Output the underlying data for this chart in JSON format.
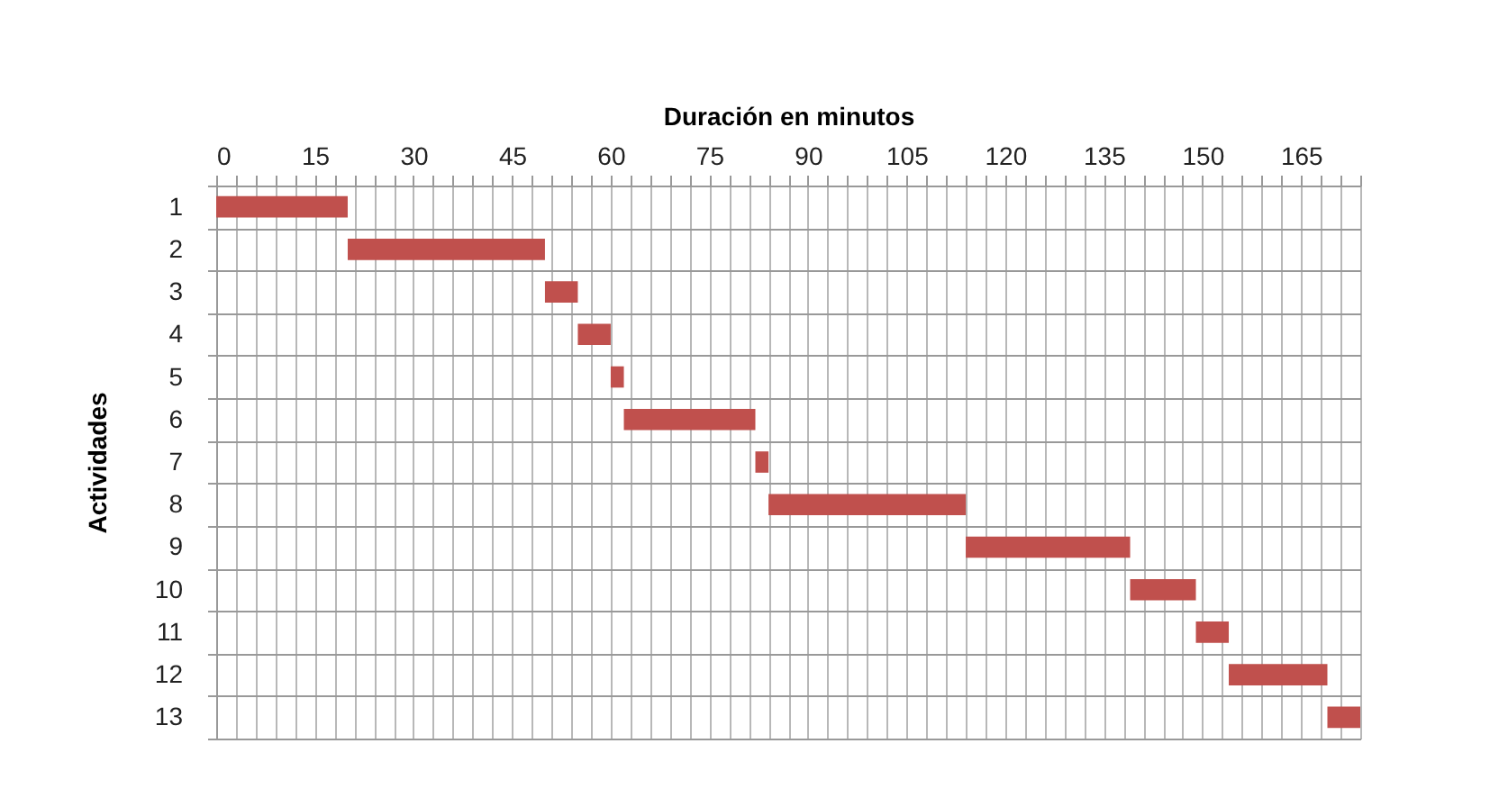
{
  "chart_data": {
    "type": "bar",
    "orientation": "horizontal",
    "xlabel": "Duración en minutos",
    "ylabel": "Actividades",
    "categories": [
      "1",
      "2",
      "3",
      "4",
      "5",
      "6",
      "7",
      "8",
      "9",
      "10",
      "11",
      "12",
      "13"
    ],
    "base": [
      0,
      20,
      50,
      55,
      60,
      62,
      82,
      84,
      114,
      139,
      149,
      154,
      169
    ],
    "values": [
      20,
      30,
      5,
      5,
      2,
      20,
      2,
      30,
      25,
      10,
      5,
      15,
      5
    ],
    "color": "#c0504d",
    "grid": true,
    "xlim": [
      0,
      174
    ],
    "xticks": [
      0,
      {
        "value": 3,
        "label": null
      },
      {
        "value": 6,
        "label": null
      },
      {
        "value": 9,
        "label": null
      },
      {
        "value": 12,
        "label": null
      },
      15,
      {
        "value": 18,
        "label": null
      },
      {
        "value": 21,
        "label": null
      },
      {
        "value": 24,
        "label": null
      },
      {
        "value": 27,
        "label": null
      },
      30,
      {
        "value": 33,
        "label": null
      },
      {
        "value": 36,
        "label": null
      },
      {
        "value": 39,
        "label": null
      },
      {
        "value": 42,
        "label": null
      },
      45,
      {
        "value": 48,
        "label": null
      },
      {
        "value": 51,
        "label": null
      },
      {
        "value": 54,
        "label": null
      },
      {
        "value": 57,
        "label": null
      },
      60,
      {
        "value": 63,
        "label": null
      },
      {
        "value": 66,
        "label": null
      },
      {
        "value": 69,
        "label": null
      },
      {
        "value": 72,
        "label": null
      },
      75,
      {
        "value": 78,
        "label": null
      },
      {
        "value": 81,
        "label": null
      },
      {
        "value": 84,
        "label": null
      },
      {
        "value": 87,
        "label": null
      },
      90,
      {
        "value": 93,
        "label": null
      },
      {
        "value": 96,
        "label": null
      },
      {
        "value": 99,
        "label": null
      },
      {
        "value": 102,
        "label": null
      },
      105,
      {
        "value": 108,
        "label": null
      },
      {
        "value": 111,
        "label": null
      },
      {
        "value": 114,
        "label": null
      },
      {
        "value": 117,
        "label": null
      },
      120,
      {
        "value": 123,
        "label": null
      },
      {
        "value": 126,
        "label": null
      },
      {
        "value": 129,
        "label": null
      },
      {
        "value": 132,
        "label": null
      },
      135,
      {
        "value": 138,
        "label": null
      },
      {
        "value": 141,
        "label": null
      },
      {
        "value": 144,
        "label": null
      },
      {
        "value": 147,
        "label": null
      },
      150,
      {
        "value": 153,
        "label": null
      },
      {
        "value": 156,
        "label": null
      },
      {
        "value": 159,
        "label": null
      },
      {
        "value": 162,
        "label": null
      },
      165,
      {
        "value": 168,
        "label": null
      },
      {
        "value": 171,
        "label": null
      },
      {
        "value": 174,
        "label": null
      }
    ]
  }
}
